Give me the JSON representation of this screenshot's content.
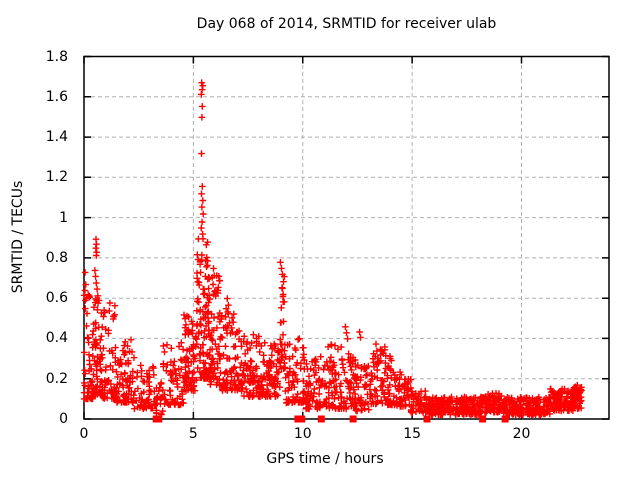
{
  "chart_data": {
    "type": "scatter",
    "title": "Day 068 of 2014, SRMTID for receiver ulab",
    "xlabel": "GPS time / hours",
    "ylabel": "SRMTID / TECUs",
    "xlim": [
      0,
      24
    ],
    "ylim": [
      0,
      1.8
    ],
    "x_ticks": [
      0,
      5,
      10,
      15,
      20
    ],
    "y_ticks": [
      0,
      0.2,
      0.4,
      0.6,
      0.8,
      1,
      1.2,
      1.4,
      1.6,
      1.8
    ],
    "y_tick_labels": [
      "0",
      "0.2",
      "0.4",
      "0.6",
      "0.8",
      "1",
      "1.2",
      "1.4",
      "1.6",
      "1.8"
    ],
    "grid": true,
    "legend": false,
    "marker": "plus",
    "marker_color": "#ff0000",
    "grid_color": "#b0b0b0",
    "axis_color": "#000000",
    "background_color": "#ffffff",
    "seed": 68,
    "peak_points": [
      [
        5.38,
        1.67
      ],
      [
        5.43,
        1.655
      ],
      [
        5.4,
        1.635
      ],
      [
        5.36,
        1.612
      ],
      [
        5.41,
        1.552
      ],
      [
        5.39,
        1.498
      ],
      [
        5.37,
        1.318
      ],
      [
        5.41,
        1.155
      ],
      [
        5.37,
        1.118
      ],
      [
        5.43,
        1.085
      ],
      [
        5.39,
        1.052
      ],
      [
        5.45,
        1.018
      ],
      [
        5.4,
        0.978
      ],
      [
        5.36,
        0.948
      ],
      [
        5.42,
        0.918
      ],
      [
        5.44,
        0.895
      ],
      [
        0.55,
        0.893
      ],
      [
        0.57,
        0.868
      ],
      [
        0.54,
        0.848
      ],
      [
        0.58,
        0.828
      ],
      [
        0.56,
        0.812
      ],
      [
        0.5,
        0.738
      ],
      [
        0.53,
        0.708
      ],
      [
        0.56,
        0.675
      ],
      [
        0.6,
        0.645
      ],
      [
        0.63,
        0.612
      ],
      [
        0.58,
        0.588
      ],
      [
        0.05,
        0.728
      ],
      [
        0.08,
        0.668
      ],
      [
        0.04,
        0.638
      ],
      [
        0.1,
        0.598
      ],
      [
        0.06,
        0.548
      ],
      [
        5.92,
        0.748
      ],
      [
        5.95,
        0.712
      ],
      [
        5.9,
        0.668
      ],
      [
        5.97,
        0.632
      ],
      [
        6.55,
        0.598
      ],
      [
        6.6,
        0.565
      ],
      [
        8.98,
        0.778
      ],
      [
        9.03,
        0.748
      ],
      [
        9.07,
        0.718
      ],
      [
        9.12,
        0.682
      ],
      [
        9.05,
        0.652
      ],
      [
        9.1,
        0.618
      ],
      [
        9.15,
        0.582
      ],
      [
        9.02,
        0.552
      ],
      [
        11.95,
        0.458
      ],
      [
        12.0,
        0.428
      ],
      [
        12.05,
        0.398
      ],
      [
        12.6,
        0.432
      ],
      [
        12.64,
        0.405
      ],
      [
        4.62,
        0.498
      ],
      [
        4.66,
        0.468
      ],
      [
        4.7,
        0.438
      ],
      [
        13.35,
        0.372
      ],
      [
        13.75,
        0.358
      ],
      [
        13.55,
        0.345
      ],
      [
        22.55,
        0.168
      ],
      [
        22.4,
        0.155
      ]
    ],
    "zero_marker_hours": [
      3.3,
      3.42,
      9.78,
      9.95,
      10.85,
      12.3,
      15.68,
      18.22,
      19.25
    ],
    "density_clusters": [
      {
        "x0": 0.0,
        "x1": 0.45,
        "n": 55,
        "lo": 0.1,
        "hi": 0.62,
        "skew": 2.2
      },
      {
        "x0": 0.45,
        "x1": 0.85,
        "n": 65,
        "lo": 0.12,
        "hi": 0.6,
        "skew": 1.9
      },
      {
        "x0": 0.85,
        "x1": 1.5,
        "n": 65,
        "lo": 0.1,
        "hi": 0.58,
        "skew": 2.1
      },
      {
        "x0": 1.5,
        "x1": 2.3,
        "n": 70,
        "lo": 0.08,
        "hi": 0.4,
        "skew": 1.8
      },
      {
        "x0": 2.3,
        "x1": 3.25,
        "n": 55,
        "lo": 0.05,
        "hi": 0.27,
        "skew": 1.6
      },
      {
        "x0": 3.3,
        "x1": 3.6,
        "n": 22,
        "lo": 0.02,
        "hi": 0.18,
        "skew": 1.5
      },
      {
        "x0": 3.6,
        "x1": 4.55,
        "n": 65,
        "lo": 0.07,
        "hi": 0.38,
        "skew": 1.9
      },
      {
        "x0": 4.55,
        "x1": 5.15,
        "n": 70,
        "lo": 0.14,
        "hi": 0.52,
        "skew": 1.7
      },
      {
        "x0": 5.15,
        "x1": 5.7,
        "n": 95,
        "lo": 0.2,
        "hi": 0.9,
        "skew": 1.7
      },
      {
        "x0": 5.7,
        "x1": 6.25,
        "n": 75,
        "lo": 0.17,
        "hi": 0.72,
        "skew": 1.8
      },
      {
        "x0": 6.25,
        "x1": 7.1,
        "n": 80,
        "lo": 0.14,
        "hi": 0.56,
        "skew": 1.9
      },
      {
        "x0": 7.1,
        "x1": 8.1,
        "n": 90,
        "lo": 0.11,
        "hi": 0.42,
        "skew": 1.7
      },
      {
        "x0": 8.1,
        "x1": 8.95,
        "n": 80,
        "lo": 0.11,
        "hi": 0.38,
        "skew": 1.6
      },
      {
        "x0": 8.95,
        "x1": 9.2,
        "n": 25,
        "lo": 0.25,
        "hi": 0.74,
        "skew": 1.4
      },
      {
        "x0": 9.2,
        "x1": 10.1,
        "n": 70,
        "lo": 0.08,
        "hi": 0.4,
        "skew": 1.8
      },
      {
        "x0": 10.1,
        "x1": 11.05,
        "n": 70,
        "lo": 0.05,
        "hi": 0.32,
        "skew": 1.6
      },
      {
        "x0": 11.05,
        "x1": 11.95,
        "n": 70,
        "lo": 0.05,
        "hi": 0.38,
        "skew": 1.7
      },
      {
        "x0": 11.95,
        "x1": 12.4,
        "n": 40,
        "lo": 0.05,
        "hi": 0.4,
        "skew": 1.6
      },
      {
        "x0": 12.4,
        "x1": 13.05,
        "n": 45,
        "lo": 0.04,
        "hi": 0.3,
        "skew": 1.5
      },
      {
        "x0": 13.05,
        "x1": 14.1,
        "n": 85,
        "lo": 0.07,
        "hi": 0.35,
        "skew": 1.4
      },
      {
        "x0": 14.1,
        "x1": 14.95,
        "n": 60,
        "lo": 0.06,
        "hi": 0.24,
        "skew": 1.5
      },
      {
        "x0": 14.95,
        "x1": 15.7,
        "n": 50,
        "lo": 0.03,
        "hi": 0.14,
        "skew": 1.3
      },
      {
        "x0": 15.7,
        "x1": 18.1,
        "n": 210,
        "lo": 0.02,
        "hi": 0.11,
        "skew": 1.2
      },
      {
        "x0": 18.1,
        "x1": 19.1,
        "n": 90,
        "lo": 0.03,
        "hi": 0.13,
        "skew": 1.2
      },
      {
        "x0": 19.1,
        "x1": 21.3,
        "n": 190,
        "lo": 0.02,
        "hi": 0.11,
        "skew": 1.2
      },
      {
        "x0": 21.3,
        "x1": 22.4,
        "n": 105,
        "lo": 0.04,
        "hi": 0.15,
        "skew": 1.2
      },
      {
        "x0": 22.4,
        "x1": 22.75,
        "n": 45,
        "lo": 0.05,
        "hi": 0.16,
        "skew": 1.1
      }
    ]
  }
}
